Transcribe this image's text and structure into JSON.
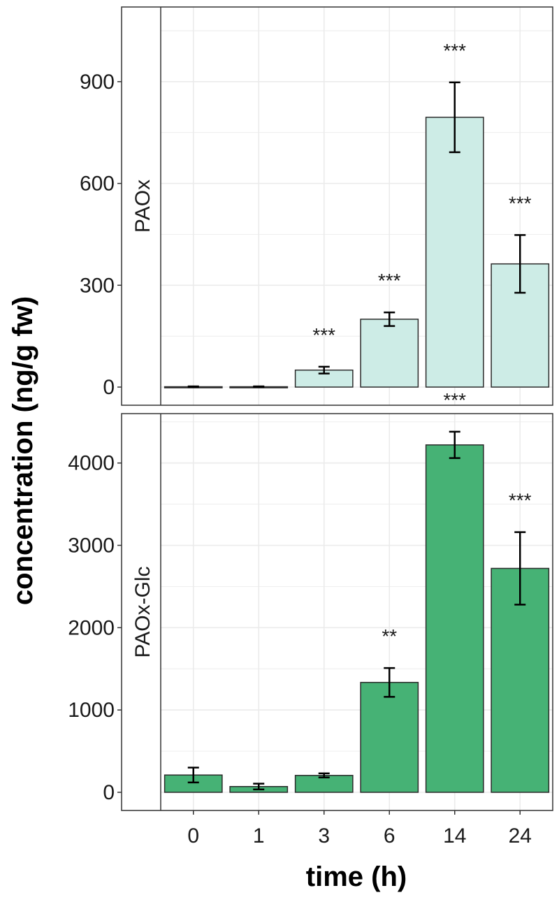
{
  "chart_data": {
    "type": "bar",
    "xlabel": "time (h)",
    "ylabel": "concentration (ng/g fw)",
    "categories": [
      "0",
      "1",
      "3",
      "6",
      "14",
      "24"
    ],
    "grid": true,
    "panels": [
      {
        "strip": "PAOx",
        "ylim": [
          0,
          1120
        ],
        "yticks": [
          0,
          300,
          600,
          900
        ],
        "fill": "#cdece6",
        "values": [
          1,
          1,
          50,
          200,
          795,
          363
        ],
        "err_low": [
          0,
          0,
          40,
          180,
          692,
          278
        ],
        "err_high": [
          2,
          2,
          60,
          220,
          898,
          448
        ],
        "significance": [
          "",
          "",
          "***",
          "***",
          "***",
          "***"
        ]
      },
      {
        "strip": "PAOx-Glc",
        "ylim": [
          0,
          4600
        ],
        "yticks": [
          0,
          1000,
          2000,
          3000,
          4000
        ],
        "fill": "#46b275",
        "values": [
          210,
          70,
          205,
          1335,
          4220,
          2720
        ],
        "err_low": [
          120,
          35,
          180,
          1160,
          4060,
          2280
        ],
        "err_high": [
          300,
          105,
          230,
          1510,
          4380,
          3160
        ],
        "significance": [
          "",
          "",
          "",
          "**",
          "***",
          "***"
        ]
      }
    ]
  }
}
